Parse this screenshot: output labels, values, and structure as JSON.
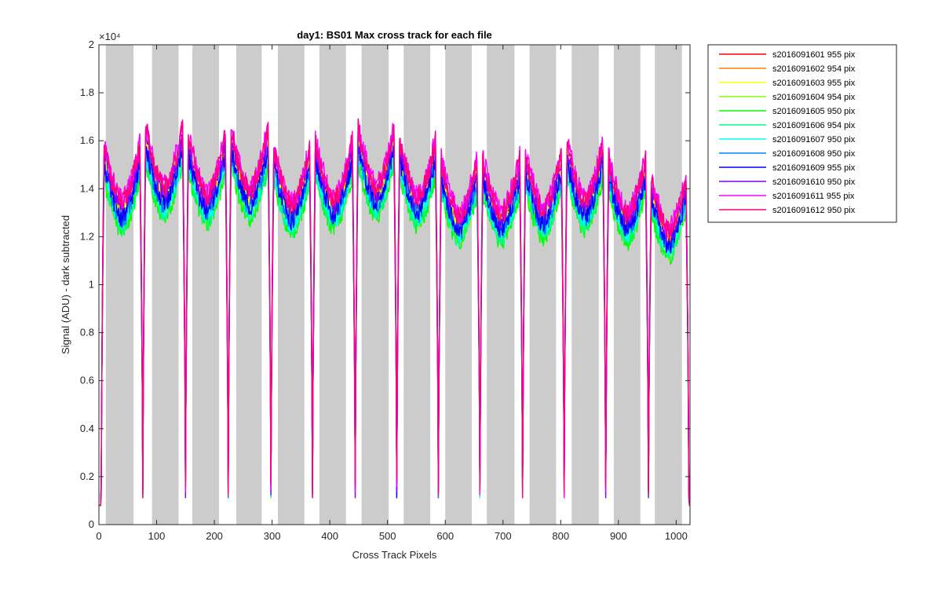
{
  "chart_data": {
    "type": "line",
    "title": "day1: BS01  Max cross track for each file",
    "xlabel": "Cross Track Pixels",
    "ylabel": "Signal (ADU) - dark subtracted",
    "y_exponent_label": "×10⁴",
    "xlim": [
      0,
      1024
    ],
    "ylim": [
      0,
      20000
    ],
    "x_ticks": [
      0,
      100,
      200,
      300,
      400,
      500,
      600,
      700,
      800,
      900,
      1000
    ],
    "y_ticks": [
      0,
      2000,
      4000,
      6000,
      8000,
      10000,
      12000,
      14000,
      16000,
      18000,
      20000
    ],
    "y_tick_labels": [
      "0",
      "0.2",
      "0.4",
      "0.6",
      "0.8",
      "1",
      "1.2",
      "1.4",
      "1.6",
      "1.8",
      "2"
    ],
    "grid": false,
    "legend_position": "outside-right",
    "shaded_bands": [
      [
        12,
        60
      ],
      [
        92,
        138
      ],
      [
        162,
        208
      ],
      [
        238,
        282
      ],
      [
        310,
        356
      ],
      [
        382,
        428
      ],
      [
        455,
        502
      ],
      [
        528,
        574
      ],
      [
        600,
        646
      ],
      [
        672,
        720
      ],
      [
        746,
        792
      ],
      [
        819,
        866
      ],
      [
        892,
        938
      ],
      [
        963,
        1010
      ]
    ],
    "trough_centers": [
      4,
      76,
      150,
      224,
      298,
      370,
      444,
      516,
      588,
      660,
      734,
      806,
      878,
      952,
      1022
    ],
    "series": [
      {
        "name": "s2016091601 955 pix",
        "color": "#ff0000",
        "scale": 0.96
      },
      {
        "name": "s2016091602 954 pix",
        "color": "#ff8000",
        "scale": 0.965
      },
      {
        "name": "s2016091603 955 pix",
        "color": "#ffff00",
        "scale": 0.955
      },
      {
        "name": "s2016091604 954 pix",
        "color": "#80ff00",
        "scale": 0.92
      },
      {
        "name": "s2016091605 950 pix",
        "color": "#00ff00",
        "scale": 0.905
      },
      {
        "name": "s2016091606 954 pix",
        "color": "#00ff80",
        "scale": 0.915
      },
      {
        "name": "s2016091607 950 pix",
        "color": "#00ffff",
        "scale": 0.93
      },
      {
        "name": "s2016091608 950 pix",
        "color": "#0080ff",
        "scale": 0.94
      },
      {
        "name": "s2016091609 955 pix",
        "color": "#0000ff",
        "scale": 0.945
      },
      {
        "name": "s2016091610 950 pix",
        "color": "#8000ff",
        "scale": 0.975
      },
      {
        "name": "s2016091611 955 pix",
        "color": "#ff00ff",
        "scale": 1.0
      },
      {
        "name": "s2016091612 950 pix",
        "color": "#ff0080",
        "scale": 0.99
      }
    ]
  }
}
